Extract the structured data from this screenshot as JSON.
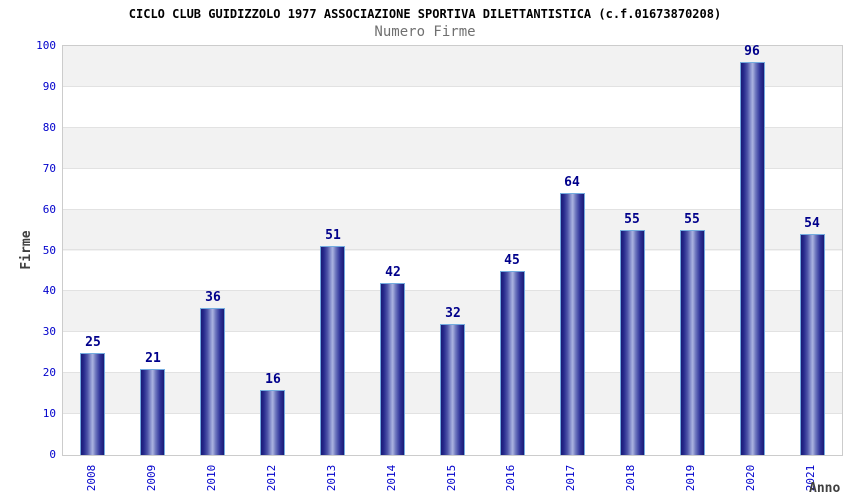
{
  "header": {
    "title": "CICLO CLUB GUIDIZZOLO 1977 ASSOCIAZIONE SPORTIVA DILETTANTISTICA (c.f.01673870208)",
    "subtitle": "Numero Firme"
  },
  "chart_data": {
    "type": "bar",
    "title": "CICLO CLUB GUIDIZZOLO 1977 ASSOCIAZIONE SPORTIVA DILETTANTISTICA (c.f.01673870208)",
    "subtitle": "Numero Firme",
    "categories": [
      "2008",
      "2009",
      "2010",
      "2012",
      "2013",
      "2014",
      "2015",
      "2016",
      "2017",
      "2018",
      "2019",
      "2020",
      "2021"
    ],
    "values": [
      25,
      21,
      36,
      16,
      51,
      42,
      32,
      45,
      64,
      55,
      55,
      96,
      54
    ],
    "xlabel": "Anno",
    "ylabel": "Firme",
    "ylim": [
      0,
      100
    ],
    "ytick_step": 10,
    "yticks": [
      0,
      10,
      20,
      30,
      40,
      50,
      60,
      70,
      80,
      90,
      100
    ],
    "grid": "horizontal-alternating-bands",
    "legend": "none",
    "bar_value_labels": true,
    "colors": {
      "bar_edge": "#1a1a75",
      "bar_highlight": "#aab2df",
      "bar_border": "#73abdf",
      "value_label": "#00008b",
      "tick_label": "#0000cc",
      "band_gray": "#f2f2f2",
      "gridline": "#e2e2e2",
      "plot_border": "#cccccc",
      "title": "#000000",
      "subtitle": "#707070",
      "axis_name": "#404040"
    }
  }
}
